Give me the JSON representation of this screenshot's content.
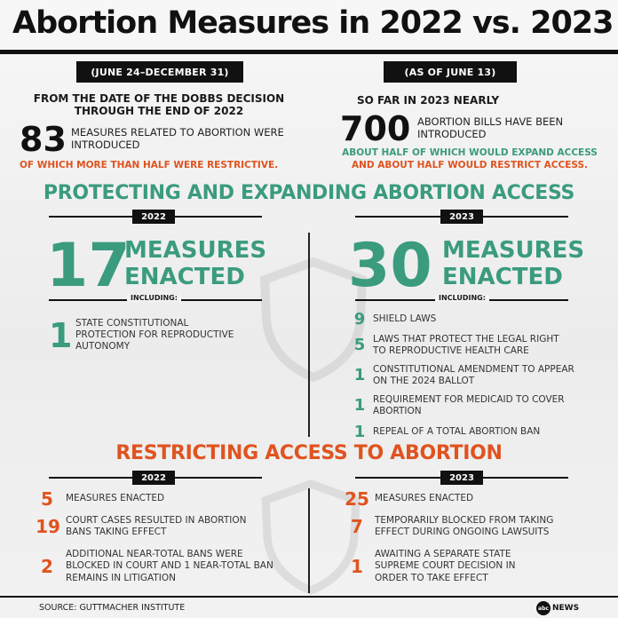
{
  "title": "Abortion Measures in 2022 vs. 2023",
  "top": {
    "left": {
      "date_label": "(JUNE 24–DECEMBER 31)",
      "intro": "FROM THE DATE OF THE DOBBS DECISION THROUGH THE END OF 2022",
      "number": "83",
      "number_text": "MEASURES RELATED TO ABORTION WERE INTRODUCED",
      "note": "OF WHICH MORE THAN HALF WERE RESTRICTIVE."
    },
    "right": {
      "date_label": "(AS OF JUNE 13)",
      "intro": "SO FAR IN 2023 NEARLY",
      "number": "700",
      "number_text": "ABORTION BILLS HAVE BEEN INTRODUCED",
      "note_green": "ABOUT HALF OF WHICH WOULD EXPAND ACCESS",
      "note_orange_pre": "AND",
      "note_orange": "ABOUT HALF WOULD RESTRICT ACCESS."
    }
  },
  "protecting": {
    "heading": "PROTECTING AND EXPANDING ABORTION ACCESS",
    "left": {
      "year": "2022",
      "number": "17",
      "label_line1": "MEASURES",
      "label_line2": "ENACTED",
      "including": "INCLUDING:",
      "items": [
        {
          "num": "1",
          "text": "STATE CONSTITUTIONAL PROTECTION  FOR REPRODUCTIVE AUTONOMY"
        }
      ]
    },
    "right": {
      "year": "2023",
      "number": "30",
      "label_line1": "MEASURES",
      "label_line2": "ENACTED",
      "including": "INCLUDING:",
      "items": [
        {
          "num": "9",
          "text": "SHIELD LAWS"
        },
        {
          "num": "5",
          "text": "LAWS THAT PROTECT THE LEGAL RIGHT TO REPRODUCTIVE HEALTH CARE"
        },
        {
          "num": "1",
          "text": "CONSTITUTIONAL AMENDMENT TO APPEAR ON THE 2024 BALLOT"
        },
        {
          "num": "1",
          "text": "REQUIREMENT FOR MEDICAID TO COVER ABORTION"
        },
        {
          "num": "1",
          "text": "REPEAL OF A TOTAL ABORTION BAN"
        }
      ]
    }
  },
  "restricting": {
    "heading": "RESTRICTING ACCESS TO ABORTION",
    "left": {
      "year": "2022",
      "items": [
        {
          "num": "5",
          "text": "MEASURES ENACTED"
        },
        {
          "num": "19",
          "text": "COURT CASES RESULTED IN ABORTION BANS TAKING EFFECT"
        },
        {
          "num": "2",
          "text": "ADDITIONAL NEAR-TOTAL BANS WERE BLOCKED IN COURT AND 1 NEAR-TOTAL BAN REMAINS IN LITIGATION"
        }
      ]
    },
    "right": {
      "year": "2023",
      "items": [
        {
          "num": "25",
          "text": "MEASURES ENACTED"
        },
        {
          "num": "7",
          "text": "TEMPORARILY BLOCKED FROM TAKING EFFECT DURING ONGOING LAWSUITS"
        },
        {
          "num": "1",
          "text": "AWAITING A SEPARATE STATE SUPREME COURT DECISION IN ORDER TO TAKE EFFECT"
        }
      ]
    }
  },
  "footer": {
    "source": "SOURCE: GUTTMACHER INSTITUTE",
    "logo_text": "abc",
    "brand": "NEWS"
  },
  "colors": {
    "green": "#3b9b7f",
    "orange": "#e0531f",
    "black": "#111111"
  }
}
